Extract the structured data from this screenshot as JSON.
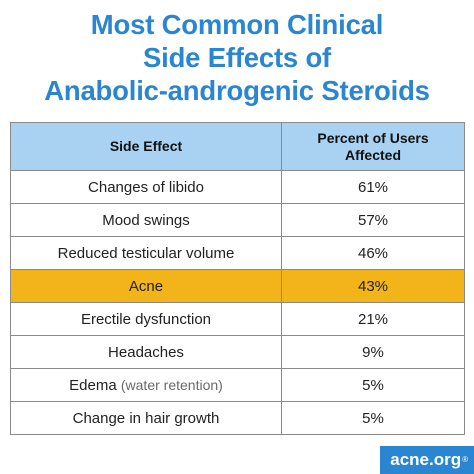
{
  "title_lines": [
    "Most Common Clinical",
    "Side Effects of",
    "Anabolic-androgenic Steroids"
  ],
  "brand": {
    "name": "acne.org",
    "mark": "®"
  },
  "colors": {
    "title": "#2a86d1",
    "header_bg": "#a9d2f2",
    "highlight": "#f2b418",
    "brand_bg": "#2a86d1"
  },
  "chart_data": {
    "type": "table",
    "columns": [
      "Side Effect",
      "Percent of Users Affected"
    ],
    "rows": [
      {
        "effect": "Changes of libido",
        "note": "",
        "percent": "61%"
      },
      {
        "effect": "Mood swings",
        "note": "",
        "percent": "57%"
      },
      {
        "effect": "Reduced testicular volume",
        "note": "",
        "percent": "46%"
      },
      {
        "effect": "Acne",
        "note": "",
        "percent": "43%",
        "highlight": true
      },
      {
        "effect": "Erectile dysfunction",
        "note": "",
        "percent": "21%"
      },
      {
        "effect": "Headaches",
        "note": "",
        "percent": "9%"
      },
      {
        "effect": "Edema",
        "note": "(water retention)",
        "percent": "5%"
      },
      {
        "effect": "Change in hair growth",
        "note": "",
        "percent": "5%"
      }
    ]
  }
}
